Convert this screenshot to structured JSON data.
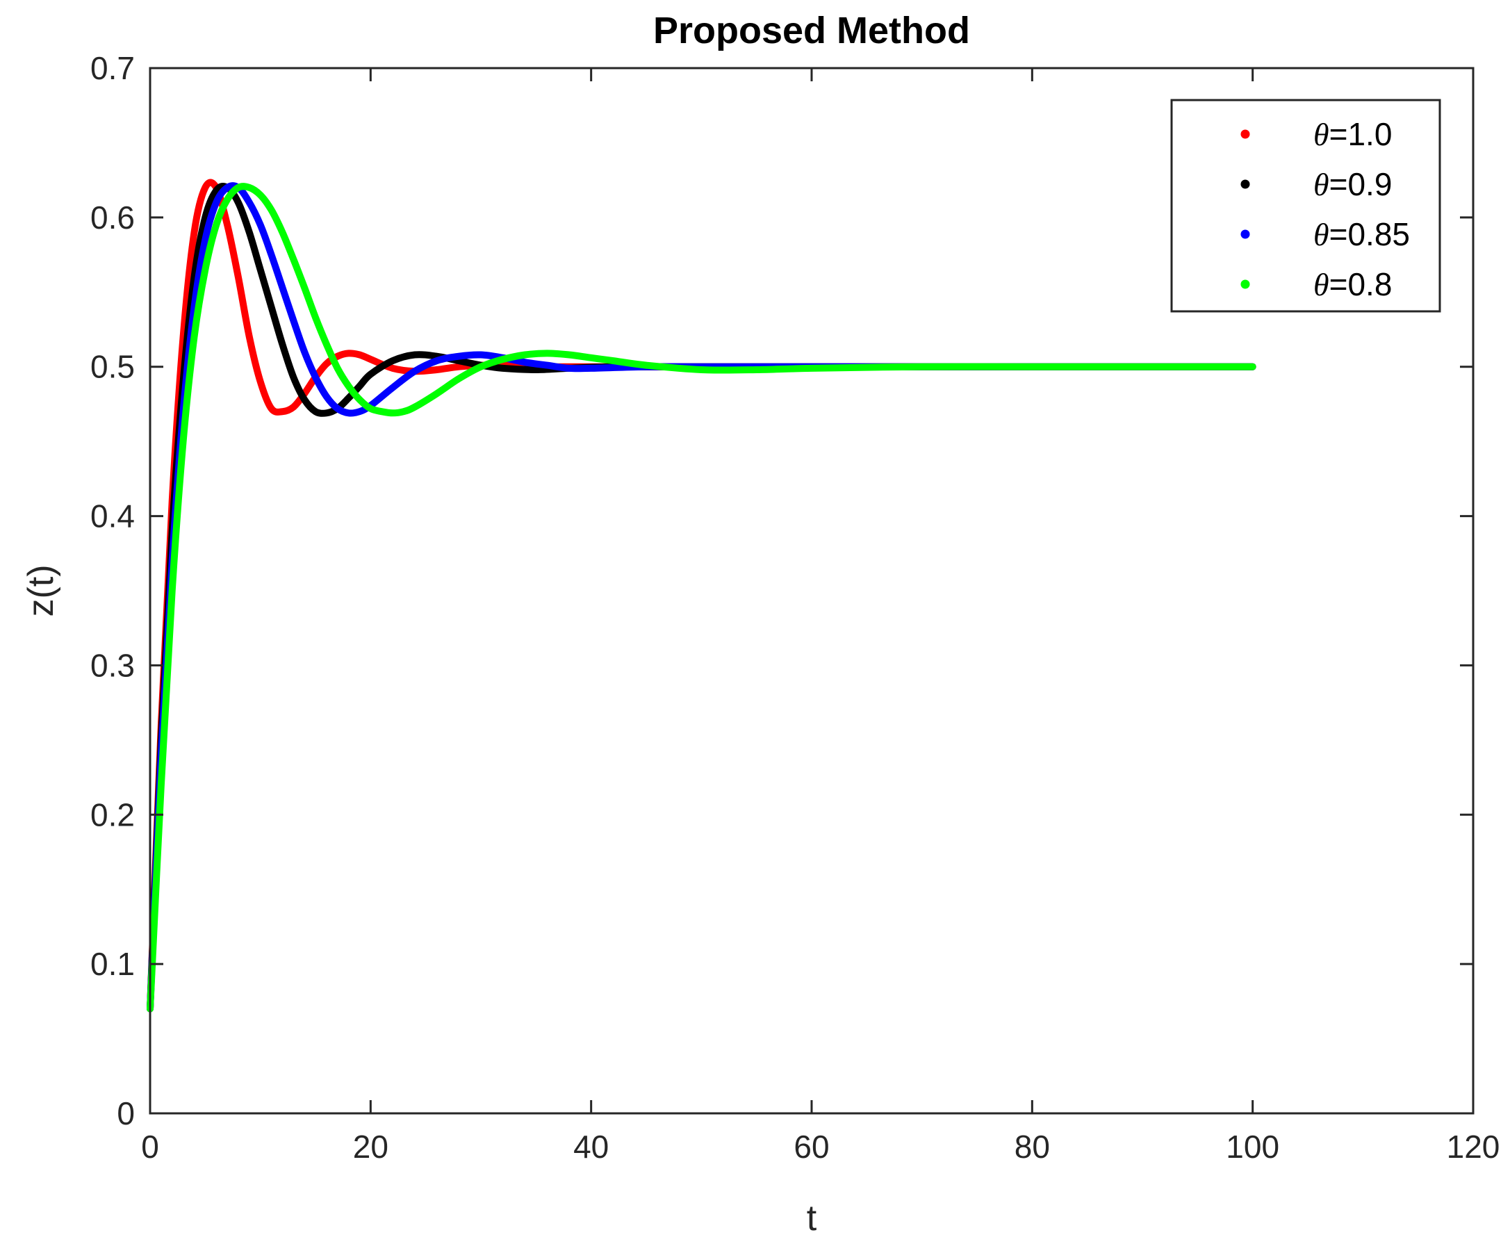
{
  "chart_data": {
    "type": "line",
    "title": "Proposed Method",
    "xlabel": "t",
    "ylabel": "z(t)",
    "xlim": [
      0,
      120
    ],
    "ylim": [
      0,
      0.7
    ],
    "x_ticks": [
      "0",
      "20",
      "40",
      "60",
      "80",
      "100",
      "120"
    ],
    "y_ticks": [
      "0",
      "0.1",
      "0.2",
      "0.3",
      "0.4",
      "0.5",
      "0.6",
      "0.7"
    ],
    "grid": false,
    "legend_position": "top-right",
    "series": [
      {
        "name": "=1.0",
        "symbol": "θ",
        "color": "#ff0000",
        "x": [
          0,
          1,
          2,
          3,
          4,
          5,
          6,
          7,
          8,
          9,
          10,
          11,
          12,
          13,
          14,
          15,
          16,
          17,
          18,
          19,
          20,
          22,
          24,
          26,
          28,
          30,
          32,
          35,
          40,
          50,
          60,
          70,
          80,
          90,
          100
        ],
        "y": [
          0.07,
          0.26,
          0.41,
          0.52,
          0.59,
          0.62,
          0.62,
          0.595,
          0.56,
          0.52,
          0.49,
          0.472,
          0.47,
          0.473,
          0.482,
          0.493,
          0.502,
          0.507,
          0.509,
          0.508,
          0.505,
          0.499,
          0.497,
          0.498,
          0.5,
          0.501,
          0.501,
          0.5,
          0.5,
          0.5,
          0.5,
          0.5,
          0.5,
          0.5,
          0.5
        ]
      },
      {
        "name": "=0.9",
        "symbol": "θ",
        "color": "#000000",
        "x": [
          0,
          1,
          2,
          3,
          4,
          5,
          6,
          7,
          8,
          9,
          10,
          11,
          12,
          13,
          14,
          15,
          16,
          17,
          18,
          19,
          20,
          22,
          24,
          26,
          28,
          30,
          32,
          35,
          38,
          42,
          50,
          60,
          70,
          80,
          90,
          100
        ],
        "y": [
          0.07,
          0.25,
          0.39,
          0.49,
          0.56,
          0.6,
          0.618,
          0.62,
          0.61,
          0.59,
          0.565,
          0.54,
          0.515,
          0.493,
          0.478,
          0.47,
          0.469,
          0.472,
          0.479,
          0.487,
          0.495,
          0.504,
          0.508,
          0.507,
          0.504,
          0.501,
          0.499,
          0.498,
          0.499,
          0.5,
          0.5,
          0.5,
          0.5,
          0.5,
          0.5,
          0.5
        ]
      },
      {
        "name": "=0.85",
        "symbol": "θ",
        "color": "#0000ff",
        "x": [
          0,
          1,
          2,
          3,
          4,
          5,
          6,
          7,
          8,
          9,
          10,
          11,
          12,
          13,
          14,
          15,
          16,
          17,
          18,
          19,
          20,
          22,
          24,
          26,
          28,
          30,
          32,
          34,
          36,
          38,
          40,
          45,
          50,
          60,
          70,
          80,
          90,
          100
        ],
        "y": [
          0.07,
          0.24,
          0.37,
          0.47,
          0.54,
          0.585,
          0.61,
          0.62,
          0.62,
          0.61,
          0.595,
          0.575,
          0.553,
          0.531,
          0.51,
          0.493,
          0.48,
          0.472,
          0.469,
          0.47,
          0.474,
          0.486,
          0.497,
          0.504,
          0.507,
          0.508,
          0.506,
          0.503,
          0.501,
          0.499,
          0.499,
          0.5,
          0.5,
          0.5,
          0.5,
          0.5,
          0.5,
          0.5
        ]
      },
      {
        "name": "=0.8",
        "symbol": "θ",
        "color": "#00ff00",
        "x": [
          0,
          1,
          2,
          3,
          4,
          5,
          6,
          7,
          8,
          9,
          10,
          11,
          12,
          13,
          14,
          15,
          16,
          17,
          18,
          19,
          20,
          21,
          22,
          23,
          24,
          26,
          28,
          30,
          32,
          34,
          36,
          38,
          40,
          42,
          45,
          50,
          55,
          60,
          70,
          80,
          90,
          100
        ],
        "y": [
          0.07,
          0.22,
          0.35,
          0.45,
          0.52,
          0.565,
          0.595,
          0.612,
          0.62,
          0.62,
          0.615,
          0.605,
          0.59,
          0.572,
          0.553,
          0.533,
          0.515,
          0.499,
          0.487,
          0.478,
          0.472,
          0.47,
          0.469,
          0.47,
          0.473,
          0.482,
          0.492,
          0.5,
          0.505,
          0.508,
          0.509,
          0.508,
          0.506,
          0.504,
          0.501,
          0.498,
          0.498,
          0.499,
          0.5,
          0.5,
          0.5,
          0.5
        ]
      }
    ]
  }
}
